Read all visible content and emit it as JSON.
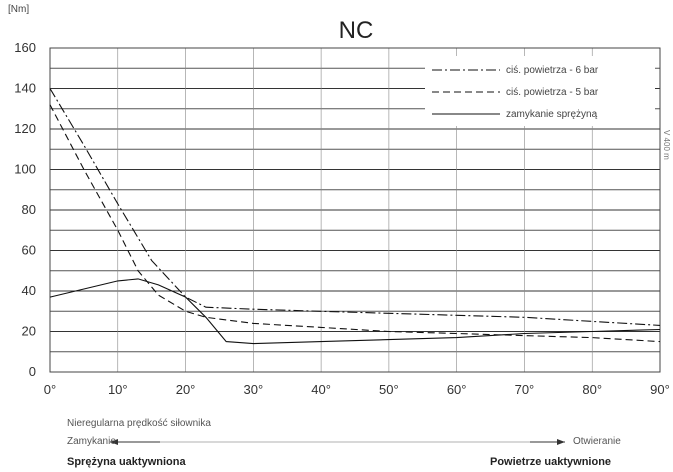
{
  "chart_data": {
    "type": "line",
    "title": "NC",
    "ylabel": "[Nm]",
    "side_note": "V 400 m",
    "xlim": [
      0,
      90
    ],
    "ylim": [
      0,
      160
    ],
    "x_ticks": [
      "0°",
      "10°",
      "20°",
      "30°",
      "40°",
      "50°",
      "60°",
      "70°",
      "80°",
      "90°"
    ],
    "y_ticks": [
      "0",
      "20",
      "40",
      "60",
      "80",
      "100",
      "120",
      "140",
      "160"
    ],
    "legend_position": "top-right",
    "series": [
      {
        "name": "ciś. powietrza - 6 bar",
        "style": "dashdot",
        "x": [
          0,
          5,
          10,
          15,
          20,
          23,
          30,
          40,
          50,
          60,
          70,
          80,
          90
        ],
        "y": [
          140,
          112,
          83,
          55,
          37,
          32,
          31,
          30,
          29,
          28,
          27,
          25,
          23
        ]
      },
      {
        "name": "ciś. powietrza - 5 bar",
        "style": "dashed",
        "x": [
          0,
          5,
          10,
          13,
          16,
          20,
          23,
          30,
          40,
          50,
          60,
          70,
          80,
          90
        ],
        "y": [
          132,
          100,
          70,
          50,
          38,
          30,
          27,
          24,
          22,
          20,
          19,
          18,
          17,
          15
        ]
      },
      {
        "name": "zamykanie sprężyną",
        "style": "solid",
        "x": [
          0,
          5,
          10,
          13,
          16,
          20,
          23,
          26,
          30,
          40,
          50,
          60,
          70,
          80,
          90
        ],
        "y": [
          37,
          41,
          45,
          46,
          43,
          37,
          27,
          15,
          14,
          15,
          16,
          17,
          19,
          20,
          21
        ]
      }
    ]
  },
  "footer": {
    "speed_note": "Nieregularna prędkość siłownika",
    "closing_label": "Zamykanie",
    "opening_label": "Otwieranie",
    "spring_active": "Sprężyna uaktywniona",
    "air_active": "Powietrze uaktywnione"
  }
}
